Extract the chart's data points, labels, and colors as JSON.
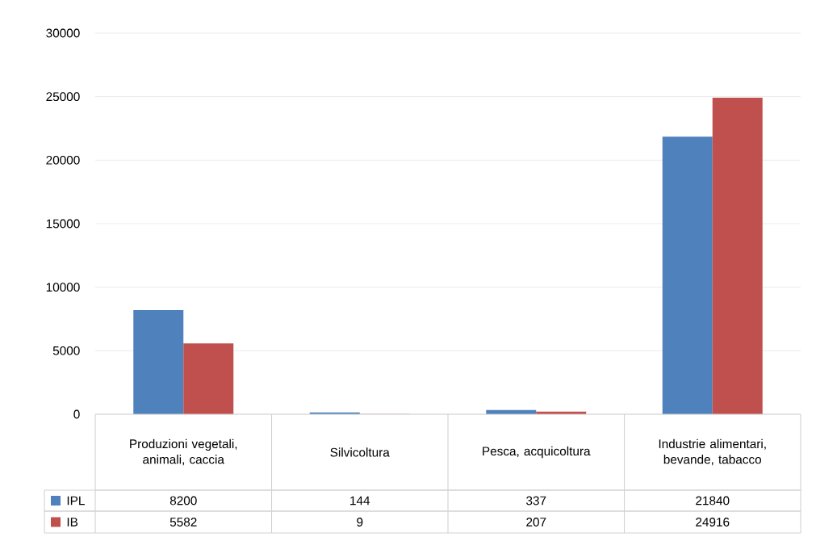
{
  "chart_data": {
    "type": "bar",
    "categories": [
      "Produzioni vegetali, animali, caccia",
      "Silvicoltura",
      "Pesca, acquicoltura",
      "Industrie alimentari, bevande, tabacco"
    ],
    "series": [
      {
        "name": "IPL",
        "color": "#4f81bd",
        "values": [
          8200,
          144,
          337,
          21840
        ]
      },
      {
        "name": "IB",
        "color": "#c0504d",
        "values": [
          5582,
          9,
          207,
          24916
        ]
      }
    ],
    "ylim": [
      0,
      30000
    ],
    "yticks": [
      0,
      5000,
      10000,
      15000,
      20000,
      25000,
      30000
    ],
    "grid": "y",
    "legend": "bottom left",
    "data_labels": true
  }
}
